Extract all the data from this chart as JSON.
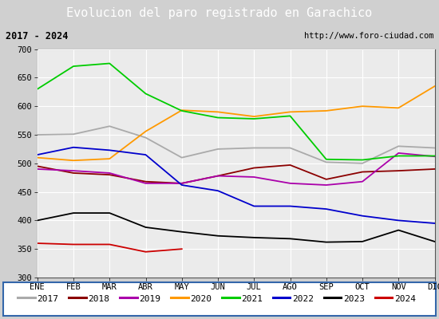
{
  "title": "Evolucion del paro registrado en Garachico",
  "subtitle_left": "2017 - 2024",
  "subtitle_right": "http://www.foro-ciudad.com",
  "months": [
    "ENE",
    "FEB",
    "MAR",
    "ABR",
    "MAY",
    "JUN",
    "JUL",
    "AGO",
    "SEP",
    "OCT",
    "NOV",
    "DIC"
  ],
  "series": {
    "2017": {
      "color": "#aaaaaa",
      "data": [
        550,
        551,
        565,
        545,
        510,
        525,
        527,
        527,
        502,
        500,
        530,
        527
      ]
    },
    "2018": {
      "color": "#8b0000",
      "data": [
        495,
        483,
        480,
        468,
        465,
        478,
        492,
        497,
        472,
        485,
        487,
        490
      ]
    },
    "2019": {
      "color": "#aa00aa",
      "data": [
        490,
        487,
        483,
        465,
        465,
        478,
        476,
        465,
        462,
        468,
        518,
        512
      ]
    },
    "2020": {
      "color": "#ff9900",
      "data": [
        510,
        505,
        508,
        556,
        593,
        590,
        582,
        590,
        592,
        600,
        597,
        635
      ]
    },
    "2021": {
      "color": "#00cc00",
      "data": [
        630,
        670,
        675,
        622,
        592,
        580,
        578,
        583,
        507,
        506,
        513,
        513
      ]
    },
    "2022": {
      "color": "#0000cc",
      "data": [
        515,
        528,
        523,
        515,
        462,
        452,
        425,
        425,
        420,
        408,
        400,
        395
      ]
    },
    "2023": {
      "color": "#000000",
      "data": [
        400,
        413,
        413,
        388,
        380,
        373,
        370,
        368,
        362,
        363,
        383,
        363
      ]
    },
    "2024": {
      "color": "#cc0000",
      "data": [
        360,
        358,
        358,
        345,
        350,
        null,
        null,
        null,
        null,
        null,
        null,
        null
      ]
    }
  },
  "ylim": [
    300,
    700
  ],
  "yticks": [
    300,
    350,
    400,
    450,
    500,
    550,
    600,
    650,
    700
  ],
  "title_bg": "#4a86c8",
  "title_color": "white",
  "subtitle_bg": "#e8e8e8",
  "plot_bg": "#ebebeb",
  "grid_color": "white",
  "title_fontsize": 11,
  "axis_fontsize": 7.5,
  "legend_fontsize": 8
}
